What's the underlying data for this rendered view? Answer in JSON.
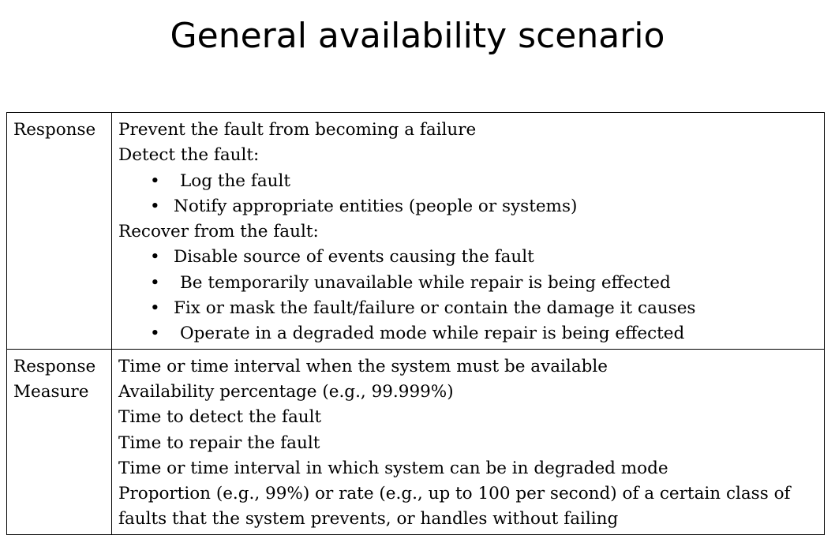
{
  "title": "General availability scenario",
  "rows": [
    {
      "label": "Response",
      "lines": [
        {
          "type": "text",
          "text": "Prevent the fault from becoming a failure"
        },
        {
          "type": "text",
          "text": "Detect the fault:"
        },
        {
          "type": "bullet",
          "text": "Log the fault"
        },
        {
          "type": "bullet",
          "text": "Notify appropriate entities (people or systems)"
        },
        {
          "type": "text",
          "text": "Recover from the fault:"
        },
        {
          "type": "bullet",
          "text": "Disable source of events causing the fault"
        },
        {
          "type": "bullet",
          "text": "Be temporarily unavailable while repair is being effected"
        },
        {
          "type": "bullet",
          "text": "Fix or mask the fault/failure or contain the damage it causes"
        },
        {
          "type": "bullet",
          "text": "Operate in a degraded mode while repair is being effected"
        }
      ]
    },
    {
      "label": "Response\nMeasure",
      "lines": [
        {
          "type": "text",
          "text": "Time or time interval when the system must be available"
        },
        {
          "type": "text",
          "text": "Availability percentage (e.g., 99.999%)"
        },
        {
          "type": "text",
          "text": "Time to detect the fault"
        },
        {
          "type": "text",
          "text": "Time to repair the fault"
        },
        {
          "type": "text",
          "text": "Time or time interval in which system can be in degraded mode"
        },
        {
          "type": "text",
          "text": "Proportion (e.g., 99%) or rate (e.g., up to 100 per second) of a certain class of faults that the system prevents, or handles without failing"
        }
      ]
    }
  ]
}
